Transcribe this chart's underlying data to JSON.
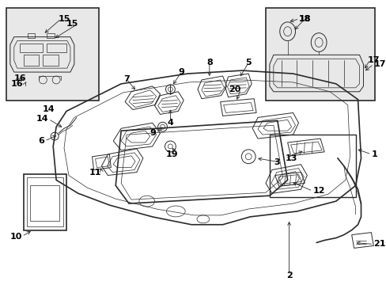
{
  "bg_color": "#ffffff",
  "fig_width": 4.89,
  "fig_height": 3.6,
  "dpi": 100,
  "line_color": "#2a2a2a",
  "text_color": "#000000",
  "label_fontsize": 8.0,
  "inset_bg": "#e8e8e8"
}
